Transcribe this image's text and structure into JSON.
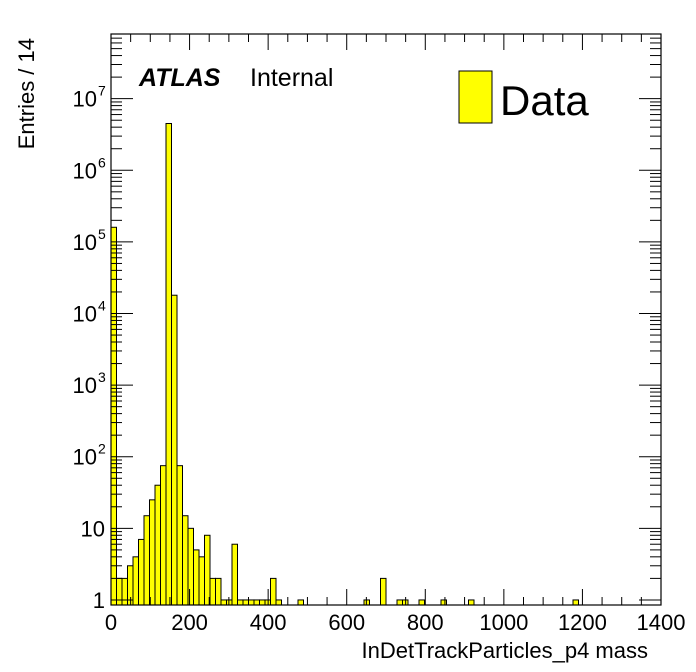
{
  "chart_data": {
    "type": "bar",
    "histogram": true,
    "bin_width": 14,
    "log_y": true,
    "xlabel": "InDetTrackParticles_p4 mass",
    "ylabel": "Entries / 14",
    "xlim": [
      0,
      1400
    ],
    "ylim": [
      0.85,
      80000000
    ],
    "x_ticks": [
      "0",
      "200",
      "400",
      "600",
      "800",
      "1000",
      "1200",
      "1400"
    ],
    "y_ticks": [
      "1",
      "10",
      "10",
      "10",
      "10",
      "10",
      "10",
      "10"
    ],
    "y_tick_exponents": [
      "",
      "",
      "2",
      "3",
      "4",
      "5",
      "6",
      "7"
    ],
    "grid": false,
    "legend_position": "top-right",
    "colors": {
      "fill": "#ffff00",
      "line": "#000000"
    },
    "annotations": {
      "atlas": "ATLAS",
      "status": "Internal"
    },
    "series": [
      {
        "name": "Data",
        "bin_starts": [
          0,
          14,
          28,
          42,
          56,
          70,
          84,
          98,
          112,
          126,
          140,
          154,
          168,
          182,
          196,
          210,
          224,
          238,
          252,
          266,
          280,
          294,
          308,
          322,
          336,
          350,
          364,
          378,
          392,
          406,
          420,
          476,
          644,
          686,
          728,
          742,
          784,
          840,
          910,
          1176
        ],
        "values": [
          160000,
          2,
          2,
          3,
          4,
          7,
          15,
          25,
          40,
          75,
          4500000,
          18000,
          75,
          15,
          10,
          5,
          4,
          8,
          2,
          2,
          1,
          1,
          6,
          1,
          1,
          1,
          1,
          1,
          1,
          2,
          1,
          1,
          1,
          2,
          1,
          1,
          1,
          1,
          1,
          1
        ]
      }
    ]
  }
}
